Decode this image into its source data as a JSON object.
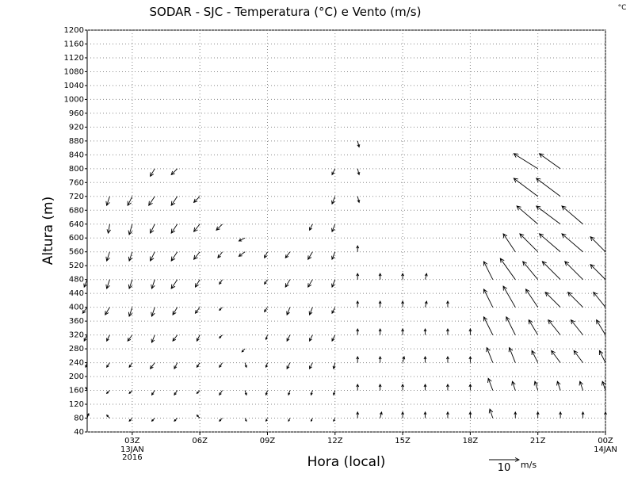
{
  "chart_data": {
    "type": "wind-vector",
    "title": "SODAR - SJC - Temperatura (°C) e Vento (m/s)",
    "corner_label": "°C",
    "xlabel": "Hora (local)",
    "ylabel": "Altura (m)",
    "xlim": [
      1,
      24
    ],
    "xticks": [
      {
        "value": 3,
        "label": "03Z"
      },
      {
        "value": 6,
        "label": "06Z"
      },
      {
        "value": 9,
        "label": "09Z"
      },
      {
        "value": 12,
        "label": "12Z"
      },
      {
        "value": 15,
        "label": "15Z"
      },
      {
        "value": 18,
        "label": "18Z"
      },
      {
        "value": 21,
        "label": "21Z"
      },
      {
        "value": 24,
        "label": "00Z"
      }
    ],
    "xtick_dates": [
      {
        "value": 3,
        "lines": [
          "13JAN",
          "2016"
        ]
      },
      {
        "value": 24,
        "lines": [
          "14JAN"
        ]
      }
    ],
    "ylim": [
      40,
      1200
    ],
    "yticks": [
      40,
      80,
      120,
      160,
      200,
      240,
      280,
      320,
      360,
      400,
      440,
      480,
      520,
      560,
      600,
      640,
      680,
      720,
      760,
      800,
      840,
      880,
      920,
      960,
      1000,
      1040,
      1080,
      1120,
      1160,
      1200
    ],
    "grid": true,
    "color": "#000000",
    "reference_vector": {
      "value": 10,
      "unit": "m/s"
    },
    "columns": [
      {
        "hour": 1,
        "heights": [
          80,
          160,
          240,
          320,
          400,
          480
        ],
        "u": [
          0.5,
          -0.5,
          -0.5,
          -1,
          -1.5,
          -1
        ],
        "v": [
          1.5,
          1,
          -1.5,
          -2,
          -2,
          -2.5
        ]
      },
      {
        "hour": 2,
        "heights": [
          80,
          160,
          240,
          320,
          400,
          480,
          560,
          640,
          720
        ],
        "u": [
          -1,
          -1,
          -1,
          -1,
          -1.5,
          -1,
          -1,
          -0.5,
          -1
        ],
        "v": [
          1,
          -1,
          -1.5,
          -2,
          -2.5,
          -3,
          -3,
          -3,
          -3
        ]
      },
      {
        "hour": 3,
        "heights": [
          80,
          160,
          240,
          320,
          400,
          480,
          560,
          640,
          720
        ],
        "u": [
          -1,
          -1,
          -1,
          -1.5,
          -1,
          -1,
          -1,
          -1,
          -1.5
        ],
        "v": [
          -1,
          -1,
          -1.5,
          -2,
          -3,
          -3,
          -3,
          -3.5,
          -3
        ]
      },
      {
        "hour": 4,
        "heights": [
          80,
          160,
          240,
          320,
          400,
          480,
          560,
          640,
          720,
          800
        ],
        "u": [
          -1,
          -1,
          -1.5,
          -1,
          -1,
          -1,
          -1.5,
          -1.5,
          -2,
          -1.5
        ],
        "v": [
          -1,
          -1.5,
          -2,
          -2.5,
          -3,
          -3,
          -3,
          -3,
          -3,
          -2.5
        ]
      },
      {
        "hour": 5,
        "heights": [
          80,
          160,
          240,
          320,
          400,
          480,
          560,
          640,
          720,
          800
        ],
        "u": [
          -1,
          -1,
          -1,
          -1.5,
          -1.5,
          -2,
          -2,
          -2,
          -2,
          -2
        ],
        "v": [
          -1,
          -1.5,
          -2,
          -2,
          -2.5,
          -3,
          -3,
          -3,
          -3,
          -2
        ]
      },
      {
        "hour": 6,
        "heights": [
          80,
          160,
          240,
          320,
          400,
          480,
          560,
          640,
          720
        ],
        "u": [
          -1,
          -1,
          -1,
          -1,
          -1.5,
          -1.5,
          -2,
          -2,
          -2
        ],
        "v": [
          1,
          -1,
          -1.5,
          -2,
          -2,
          -2.5,
          -2.5,
          -2.5,
          -2
        ]
      },
      {
        "hour": 7,
        "heights": [
          80,
          160,
          240,
          320,
          400,
          480,
          560,
          640
        ],
        "u": [
          -1,
          -1,
          -1,
          -1,
          -1,
          -1,
          -1.5,
          -2
        ],
        "v": [
          -1,
          -1.5,
          -1.5,
          -1,
          -1,
          -1.5,
          -2,
          -2
        ]
      },
      {
        "hour": 8,
        "heights": [
          80,
          160,
          240,
          280,
          560,
          600
        ],
        "u": [
          0.5,
          0.5,
          0.5,
          -1,
          -2,
          -2
        ],
        "v": [
          -1,
          -1.5,
          -1.5,
          -1,
          -1.5,
          -1
        ]
      },
      {
        "hour": 9,
        "heights": [
          80,
          160,
          240,
          320,
          400,
          480,
          560
        ],
        "u": [
          -0.5,
          -0.5,
          -0.5,
          -0.5,
          -1,
          -1,
          -1
        ],
        "v": [
          -1,
          -1.5,
          -1.5,
          -1.5,
          -1.5,
          -1.5,
          -2
        ]
      },
      {
        "hour": 10,
        "heights": [
          80,
          160,
          240,
          320,
          400,
          480,
          560
        ],
        "u": [
          -0.5,
          -0.5,
          -1,
          -1,
          -1,
          -1.5,
          -1.5
        ],
        "v": [
          -1,
          -1.5,
          -2,
          -2,
          -2.5,
          -2.5,
          -2
        ]
      },
      {
        "hour": 11,
        "heights": [
          80,
          160,
          240,
          320,
          400,
          480,
          560,
          640
        ],
        "u": [
          -0.5,
          -0.5,
          -1,
          -1,
          -1,
          -1.5,
          -1.5,
          -1
        ],
        "v": [
          -1,
          -1.5,
          -2,
          -2,
          -2.5,
          -2.5,
          -2.5,
          -2
        ]
      },
      {
        "hour": 12,
        "heights": [
          80,
          160,
          240,
          320,
          400,
          480,
          560,
          640,
          720,
          800
        ],
        "u": [
          -0.5,
          -0.5,
          -0.5,
          -1,
          -1,
          -1,
          -1,
          -1,
          -1,
          -1
        ],
        "v": [
          -1,
          -1.5,
          -2,
          -2,
          -2,
          -2.5,
          -2.5,
          -2.5,
          -2.5,
          -2
        ]
      },
      {
        "hour": 13,
        "heights": [
          80,
          160,
          240,
          320,
          400,
          480,
          560,
          720,
          800,
          880
        ],
        "u": [
          0,
          0,
          0,
          0,
          0,
          0,
          0,
          0.5,
          0.5,
          0.5
        ],
        "v": [
          2,
          2,
          2,
          2,
          2,
          2,
          2,
          -2,
          -2,
          -2
        ]
      },
      {
        "hour": 14,
        "heights": [
          80,
          160,
          240,
          320,
          400,
          480
        ],
        "u": [
          0.5,
          0,
          0,
          0,
          0,
          0
        ],
        "v": [
          2,
          2,
          2,
          2,
          2,
          2
        ]
      },
      {
        "hour": 15,
        "heights": [
          80,
          160,
          240,
          320,
          400,
          480
        ],
        "u": [
          0,
          0,
          0.5,
          0,
          0,
          0
        ],
        "v": [
          2,
          2,
          2,
          2,
          2,
          2
        ]
      },
      {
        "hour": 16,
        "heights": [
          80,
          160,
          240,
          320,
          400,
          480
        ],
        "u": [
          0,
          0,
          0,
          0,
          0.5,
          0.5
        ],
        "v": [
          2,
          2,
          2,
          2,
          2,
          2
        ]
      },
      {
        "hour": 17,
        "heights": [
          80,
          160,
          240,
          320,
          400
        ],
        "u": [
          0,
          0,
          0,
          0,
          0
        ],
        "v": [
          2,
          2,
          2,
          2,
          2
        ]
      },
      {
        "hour": 18,
        "heights": [
          80,
          160,
          240,
          320
        ],
        "u": [
          0,
          0,
          0,
          0
        ],
        "v": [
          2,
          2,
          2,
          2
        ]
      },
      {
        "hour": 19,
        "heights": [
          80,
          160,
          240,
          320,
          400,
          480
        ],
        "u": [
          -1,
          -1.5,
          -2,
          -3,
          -3,
          -3
        ],
        "v": [
          3,
          4,
          5,
          6,
          6,
          6
        ]
      },
      {
        "hour": 20,
        "heights": [
          80,
          160,
          240,
          320,
          400,
          480,
          560
        ],
        "u": [
          0,
          -1,
          -2,
          -3,
          -4,
          -5,
          -4
        ],
        "v": [
          2,
          3,
          5,
          6,
          7,
          7,
          6
        ]
      },
      {
        "hour": 21,
        "heights": [
          80,
          160,
          240,
          320,
          400,
          480,
          560,
          640,
          720,
          800
        ],
        "u": [
          0,
          -1,
          -2,
          -3,
          -4,
          -5,
          -6,
          -7,
          -8,
          -8
        ],
        "v": [
          2,
          3,
          4,
          5,
          6,
          6,
          6,
          6,
          6,
          5
        ]
      },
      {
        "hour": 22,
        "heights": [
          80,
          160,
          240,
          320,
          400,
          480,
          560,
          640,
          720,
          800
        ],
        "u": [
          0,
          -1,
          -3,
          -4,
          -5,
          -6,
          -7,
          -8,
          -8,
          -7
        ],
        "v": [
          2,
          3,
          4,
          5,
          5,
          6,
          6,
          6,
          6,
          5
        ]
      },
      {
        "hour": 23,
        "heights": [
          80,
          160,
          240,
          320,
          400,
          480,
          560,
          640
        ],
        "u": [
          0,
          -1,
          -3,
          -4,
          -5,
          -6,
          -7,
          -7
        ],
        "v": [
          2,
          3,
          4,
          5,
          5,
          6,
          6,
          6
        ]
      },
      {
        "hour": 24,
        "heights": [
          80,
          160,
          240,
          320,
          400,
          480,
          560
        ],
        "u": [
          0,
          -1,
          -2,
          -3,
          -4,
          -5,
          -5
        ],
        "v": [
          2,
          3,
          4,
          5,
          5,
          5,
          5
        ]
      }
    ]
  }
}
